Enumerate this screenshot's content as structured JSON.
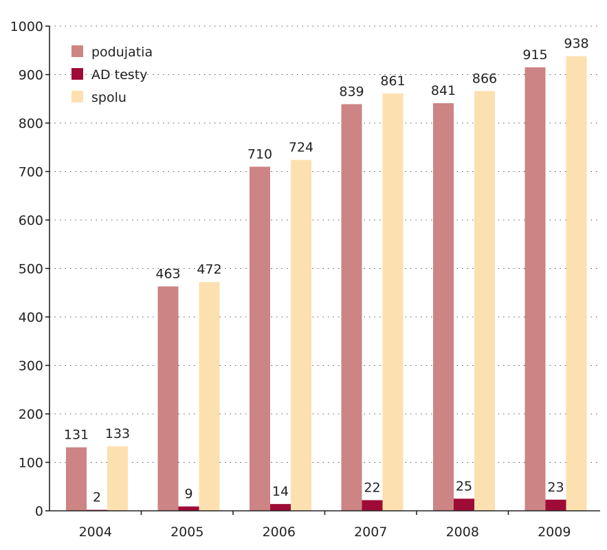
{
  "chart_data": {
    "type": "bar",
    "title": "",
    "xlabel": "",
    "ylabel": "",
    "categories": [
      "2004",
      "2005",
      "2006",
      "2007",
      "2008",
      "2009"
    ],
    "ylim": [
      0,
      1000
    ],
    "yticks": [
      0,
      100,
      200,
      300,
      400,
      500,
      600,
      700,
      800,
      900,
      1000
    ],
    "grid": true,
    "legend_position": "top-left",
    "series": [
      {
        "name": "podujatia",
        "color": "#cd8484",
        "values": [
          131,
          463,
          710,
          839,
          841,
          915
        ]
      },
      {
        "name": "AD testy",
        "color": "#9e0b36",
        "values": [
          2,
          9,
          14,
          22,
          25,
          23
        ]
      },
      {
        "name": "spolu",
        "color": "#fde0b0",
        "values": [
          133,
          472,
          724,
          861,
          866,
          938
        ]
      }
    ]
  }
}
